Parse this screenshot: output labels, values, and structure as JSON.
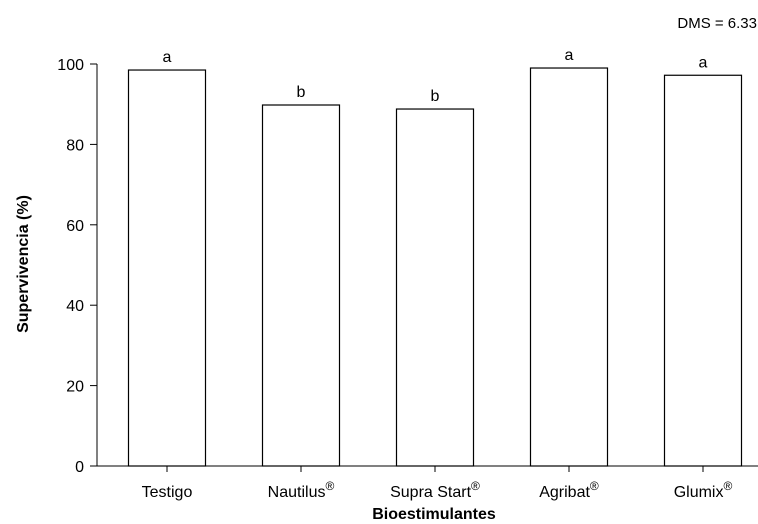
{
  "chart_data": {
    "type": "bar",
    "categories": [
      {
        "name": "Testigo",
        "mark": ""
      },
      {
        "name": "Nautilus",
        "mark": "®"
      },
      {
        "name": "Supra Start",
        "mark": "®"
      },
      {
        "name": "Agribat",
        "mark": "®"
      },
      {
        "name": "Glumix",
        "mark": "®"
      }
    ],
    "values": [
      98.5,
      89.8,
      88.8,
      99.0,
      97.2
    ],
    "significance_letters": [
      "a",
      "b",
      "b",
      "a",
      "a"
    ],
    "xlabel": "Bioestimulantes",
    "ylabel": "Supervivencia (%)",
    "ylim": [
      0,
      100
    ],
    "yticks": [
      0,
      20,
      40,
      60,
      80,
      100
    ],
    "annotation": "DMS = 6.33",
    "grid": false,
    "bar_fill": "#ffffff",
    "bar_stroke": "#000000"
  }
}
